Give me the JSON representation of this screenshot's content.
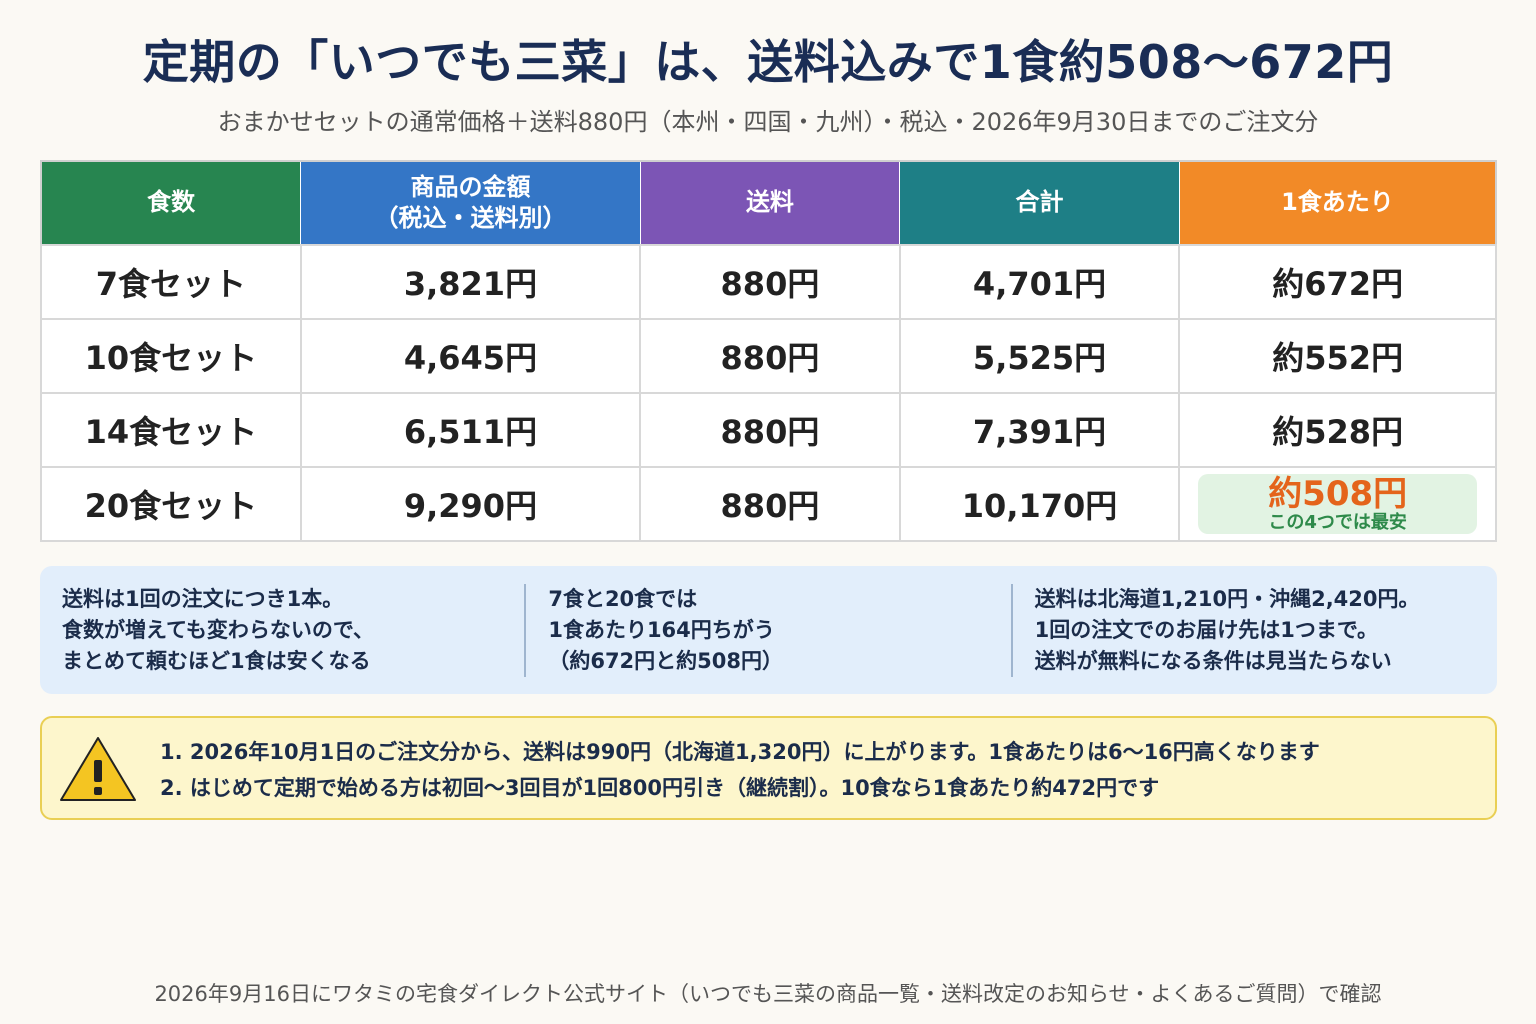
{
  "title": "定期の「いつでも三菜」は、送料込みで1食約508〜672円",
  "subtitle": "おまかせセットの通常価格＋送料880円（本州・四国・九州）・税込・2026年9月30日までのご注文分",
  "table": {
    "headers": [
      "食数",
      "商品の金額\n（税込・送料別）",
      "送料",
      "合計",
      "1食あたり"
    ],
    "header_colors": [
      "#278550",
      "#3476c6",
      "#7c55b5",
      "#1e7f86",
      "#f28a27"
    ],
    "rows": [
      {
        "set": "7食セット",
        "price": "3,821円",
        "shipping": "880円",
        "total": "4,701円",
        "per_meal": "約672円"
      },
      {
        "set": "10食セット",
        "price": "4,645円",
        "shipping": "880円",
        "total": "5,525円",
        "per_meal": "約552円"
      },
      {
        "set": "14食セット",
        "price": "6,511円",
        "shipping": "880円",
        "total": "7,391円",
        "per_meal": "約528円"
      },
      {
        "set": "20食セット",
        "price": "9,290円",
        "shipping": "880円",
        "total": "10,170円",
        "per_meal": "約508円",
        "note": "この4つでは最安"
      }
    ]
  },
  "notes": [
    [
      "送料は1回の注文につき1本。",
      "食数が増えても変わらないので、",
      "まとめて頼むほど1食は安くなる"
    ],
    [
      "7食と20食では",
      "1食あたり164円ちがう",
      "（約672円と約508円）"
    ],
    [
      "送料は北海道1,210円・沖縄2,420円。",
      "1回の注文でのお届け先は1つまで。",
      "送料が無料になる条件は見当たらない"
    ]
  ],
  "warning": {
    "icon": "warning-icon",
    "items": [
      "1. 2026年10月1日のご注文分から、送料は990円（北海道1,320円）に上がります。1食あたりは6〜16円高くなります",
      "2. はじめて定期で始める方は初回〜3回目が1回800円引き（継続割）。10食なら1食あたり約472円です"
    ]
  },
  "footer": "2026年9月16日にワタミの宅食ダイレクト公式サイト（いつでも三菜の商品一覧・送料改定のお知らせ・よくあるご質問）で確認"
}
